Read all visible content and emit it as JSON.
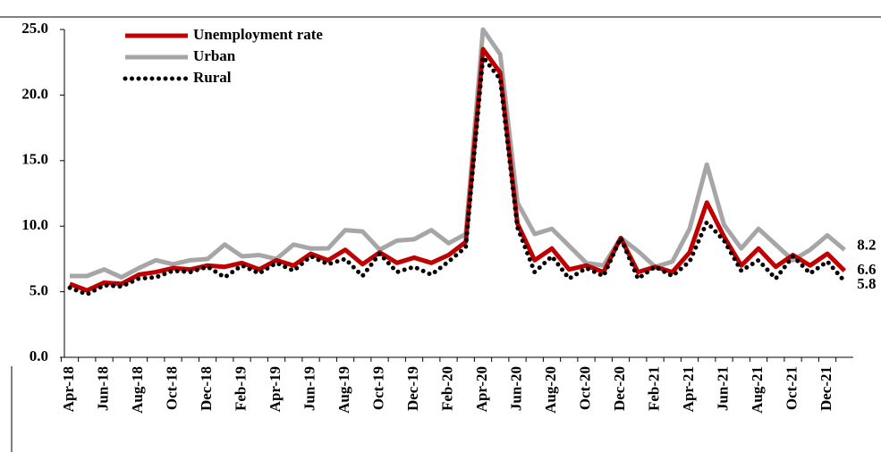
{
  "chart_data": {
    "type": "line",
    "categories": [
      "Apr-18",
      null,
      "Jun-18",
      null,
      "Aug-18",
      null,
      "Oct-18",
      null,
      "Dec-18",
      null,
      "Feb-19",
      null,
      "Apr-19",
      null,
      "Jun-19",
      null,
      "Aug-19",
      null,
      "Oct-19",
      null,
      "Dec-19",
      null,
      "Feb-20",
      null,
      "Apr-20",
      null,
      "Jun-20",
      null,
      "Aug-20",
      null,
      "Oct-20",
      null,
      "Dec-20",
      null,
      "Feb-21",
      null,
      "Apr-21",
      null,
      "Jun-21",
      null,
      "Aug-21",
      null,
      "Oct-21",
      null,
      "Dec-21",
      null
    ],
    "series": [
      {
        "name": "Unemployment rate",
        "color": "#c00000",
        "linestyle": "solid",
        "values": [
          5.6,
          5.1,
          5.7,
          5.6,
          6.3,
          6.5,
          6.8,
          6.7,
          7.0,
          6.9,
          7.2,
          6.7,
          7.4,
          7.0,
          7.9,
          7.4,
          8.2,
          7.1,
          8.0,
          7.2,
          7.6,
          7.2,
          7.8,
          8.8,
          23.5,
          21.7,
          10.2,
          7.4,
          8.3,
          6.7,
          7.0,
          6.5,
          9.1,
          6.5,
          6.9,
          6.5,
          8.0,
          11.8,
          9.2,
          7.0,
          8.3,
          6.9,
          7.8,
          7.0,
          7.9,
          6.6
        ]
      },
      {
        "name": "Urban",
        "color": "#a6a6a6",
        "linestyle": "solid",
        "values": [
          6.2,
          6.2,
          6.7,
          6.1,
          6.8,
          7.4,
          7.1,
          7.4,
          7.5,
          8.6,
          7.7,
          7.8,
          7.5,
          8.6,
          8.3,
          8.3,
          9.7,
          9.6,
          8.2,
          8.9,
          9.0,
          9.7,
          8.7,
          9.4,
          25.0,
          23.1,
          11.8,
          9.4,
          9.8,
          8.5,
          7.2,
          7.0,
          9.1,
          8.1,
          6.9,
          7.3,
          9.8,
          14.7,
          10.1,
          8.3,
          9.8,
          8.6,
          7.4,
          8.2,
          9.3,
          8.2
        ]
      },
      {
        "name": "Rural",
        "color": "#000000",
        "linestyle": "dotted",
        "values": [
          5.3,
          4.8,
          5.5,
          5.4,
          6.0,
          6.1,
          6.6,
          6.5,
          6.9,
          6.1,
          7.0,
          6.4,
          7.2,
          6.6,
          7.7,
          7.1,
          7.5,
          6.2,
          7.9,
          6.5,
          6.9,
          6.3,
          7.3,
          8.4,
          22.9,
          21.2,
          9.9,
          6.5,
          7.7,
          6.0,
          6.8,
          6.2,
          9.1,
          6.0,
          6.9,
          6.2,
          7.3,
          10.3,
          8.9,
          6.6,
          7.4,
          6.0,
          7.7,
          6.4,
          7.3,
          5.8
        ]
      }
    ],
    "ylim": [
      0,
      25
    ],
    "yticks": [
      {
        "value": 0,
        "label": "0.0"
      },
      {
        "value": 5,
        "label": "5.0"
      },
      {
        "value": 10,
        "label": "10.0"
      },
      {
        "value": 15,
        "label": "15.0"
      },
      {
        "value": 20,
        "label": "20.0"
      },
      {
        "value": 25,
        "label": "25.0"
      }
    ],
    "grid": false,
    "legend": "top-left",
    "end_labels": true
  }
}
